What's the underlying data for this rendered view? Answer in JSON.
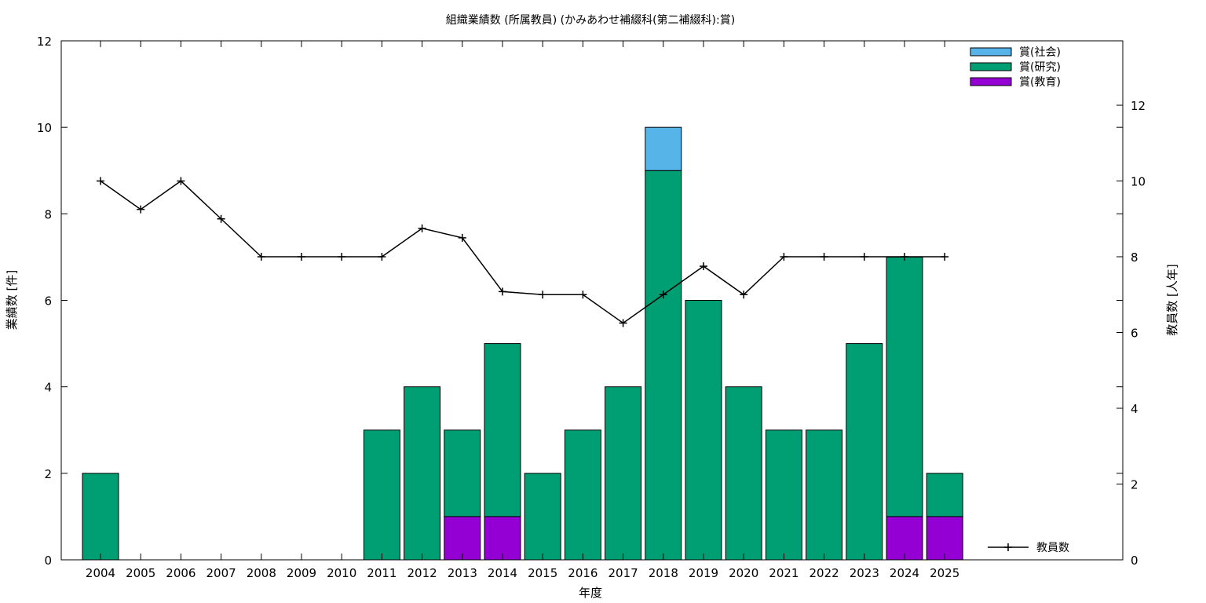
{
  "chart_data": {
    "type": "bar",
    "stacked": true,
    "title": "組織業績数 (所属教員) (かみあわせ補綴科(第二補綴科):賞)",
    "xlabel": "年度",
    "ylabel": "業績数 [件]",
    "y2label": "教員数 [人年]",
    "categories": [
      "2004",
      "2005",
      "2006",
      "2007",
      "2008",
      "2009",
      "2010",
      "2011",
      "2012",
      "2013",
      "2014",
      "2015",
      "2016",
      "2017",
      "2018",
      "2019",
      "2020",
      "2021",
      "2022",
      "2023",
      "2024",
      "2025"
    ],
    "series": [
      {
        "name": "賞(教育)",
        "color": "#9400d3",
        "values": [
          0,
          0,
          0,
          0,
          0,
          0,
          0,
          0,
          0,
          1,
          1,
          0,
          0,
          0,
          0,
          0,
          0,
          0,
          0,
          0,
          1,
          1
        ]
      },
      {
        "name": "賞(研究)",
        "color": "#009e73",
        "values": [
          2,
          0,
          0,
          0,
          0,
          0,
          0,
          3,
          4,
          2,
          4,
          2,
          3,
          4,
          9,
          6,
          4,
          3,
          3,
          5,
          6,
          1
        ]
      },
      {
        "name": "賞(社会)",
        "color": "#56b4e9",
        "values": [
          0,
          0,
          0,
          0,
          0,
          0,
          0,
          0,
          0,
          0,
          0,
          0,
          0,
          0,
          1,
          0,
          0,
          0,
          0,
          0,
          0,
          0
        ]
      }
    ],
    "line_series": {
      "name": "教員数",
      "axis": "y2",
      "color": "#000000",
      "values": [
        10,
        9.25,
        10,
        9,
        8,
        8,
        8,
        8,
        8.75,
        8.5,
        7.08,
        7,
        7,
        6.25,
        7,
        7.75,
        7,
        8,
        8,
        8,
        8,
        8
      ]
    },
    "ylim": [
      0,
      12
    ],
    "yticks": [
      0,
      2,
      4,
      6,
      8,
      10,
      12
    ],
    "y2lim": [
      0,
      13.7
    ],
    "y2ticks": [
      0,
      2,
      4,
      6,
      8,
      10,
      12
    ],
    "legend_position": "top-right",
    "line_legend_position": "bottom-right"
  }
}
